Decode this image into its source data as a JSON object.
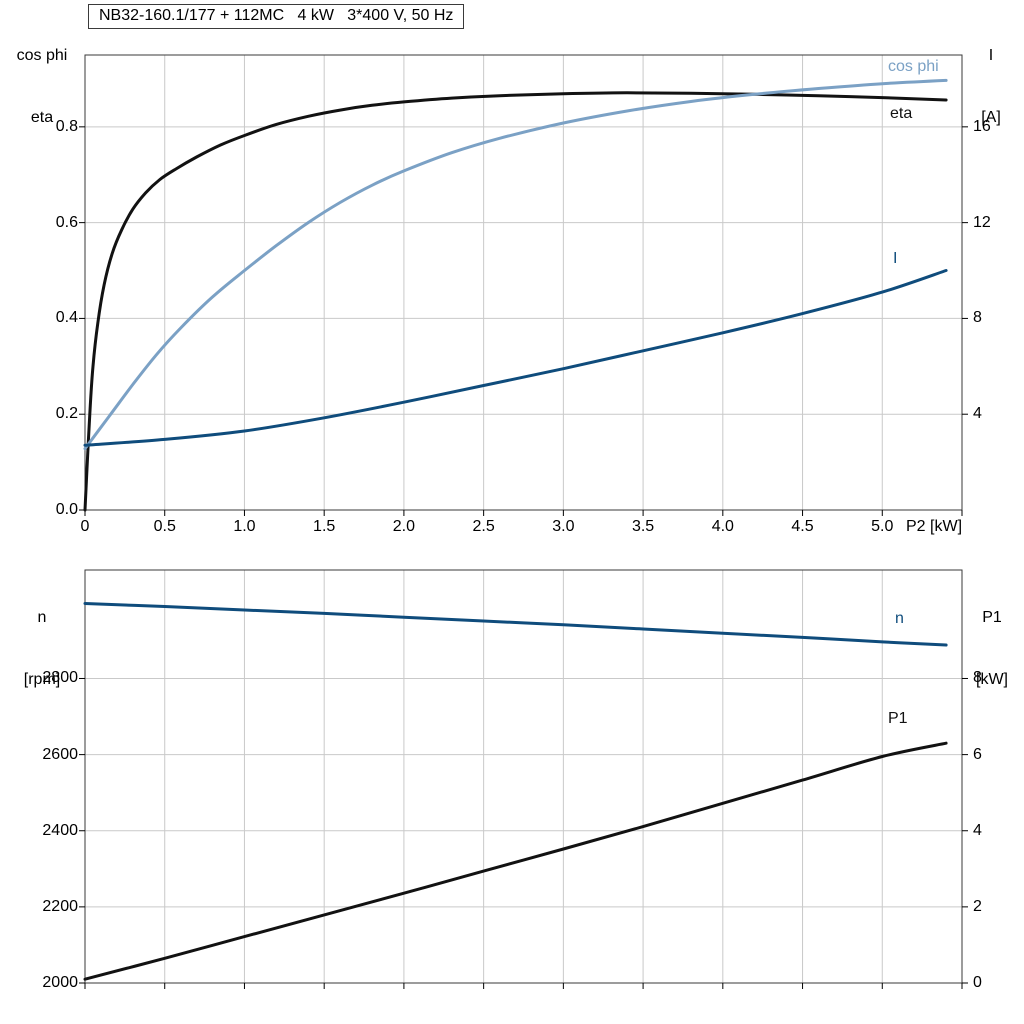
{
  "header": {
    "title": "NB32-160.1/177 + 112MC   4 kW   3*400 V, 50 Hz"
  },
  "axes": {
    "top_left_line1": "cos phi",
    "top_left_line2": "eta",
    "top_right_line1": "I",
    "top_right_line2": "[A]",
    "x_label": "P2 [kW]",
    "bottom_left_line1": "n",
    "bottom_left_line2": "[rpm]",
    "bottom_right_line1": "P1",
    "bottom_right_line2": "[kW]"
  },
  "colors": {
    "grid": "#c9c9c9",
    "frame": "#3a3a3a",
    "text": "#000000",
    "black_curve": "#121212",
    "light_blue": "#7ba1c5",
    "dark_blue": "#0f4c7c"
  },
  "chart_data": [
    {
      "type": "line",
      "title": "NB32-160.1/177 + 112MC   4 kW   3*400 V, 50 Hz",
      "xlabel": "P2 [kW]",
      "xlim": [
        0,
        5.5
      ],
      "x_ticks": [
        0,
        0.5,
        1,
        1.5,
        2,
        2.5,
        3,
        3.5,
        4,
        4.5,
        5
      ],
      "x_tick_labels": [
        "0",
        "0.5",
        "1.0",
        "1.5",
        "2.0",
        "2.5",
        "3.0",
        "3.5",
        "4.0",
        "4.5",
        "5.0"
      ],
      "left_axis": {
        "label": "cos phi / eta",
        "lim": [
          0,
          0.95
        ],
        "ticks": [
          0,
          0.2,
          0.4,
          0.6,
          0.8
        ],
        "tick_labels": [
          "0.0",
          "0.2",
          "0.4",
          "0.6",
          "0.8"
        ]
      },
      "right_axis": {
        "label": "I [A]",
        "lim": [
          0,
          19
        ],
        "ticks": [
          4,
          8,
          12,
          16
        ],
        "tick_labels": [
          "4",
          "8",
          "12",
          "16"
        ]
      },
      "grid": true,
      "legend_position": "right-inline",
      "series": [
        {
          "name": "eta",
          "color": "#121212",
          "axis": "left",
          "x": [
            0,
            0.01,
            0.03,
            0.05,
            0.08,
            0.12,
            0.17,
            0.23,
            0.3,
            0.38,
            0.47,
            0.57,
            0.7,
            0.85,
            1.0,
            1.2,
            1.4,
            1.6,
            1.8,
            2.0,
            2.3,
            2.6,
            3.0,
            3.4,
            3.8,
            4.2,
            4.6,
            5.0,
            5.4
          ],
          "y": [
            0,
            0.07,
            0.2,
            0.3,
            0.39,
            0.47,
            0.535,
            0.585,
            0.628,
            0.662,
            0.69,
            0.712,
            0.737,
            0.762,
            0.782,
            0.805,
            0.822,
            0.835,
            0.845,
            0.852,
            0.86,
            0.865,
            0.869,
            0.871,
            0.87,
            0.868,
            0.865,
            0.861,
            0.856
          ]
        },
        {
          "name": "cos phi",
          "color": "#7ba1c5",
          "axis": "left",
          "x": [
            0,
            0.15,
            0.3,
            0.45,
            0.6,
            0.8,
            1.0,
            1.2,
            1.4,
            1.6,
            1.8,
            2.0,
            2.3,
            2.6,
            3.0,
            3.4,
            3.8,
            4.2,
            4.6,
            5.0,
            5.4
          ],
          "y": [
            0.128,
            0.195,
            0.262,
            0.325,
            0.38,
            0.445,
            0.5,
            0.552,
            0.6,
            0.642,
            0.678,
            0.708,
            0.746,
            0.776,
            0.808,
            0.833,
            0.853,
            0.868,
            0.88,
            0.89,
            0.897
          ]
        },
        {
          "name": "I",
          "color": "#0f4c7c",
          "axis": "right",
          "x": [
            0,
            0.5,
            1.0,
            1.5,
            2.0,
            2.5,
            3.0,
            3.5,
            4.0,
            4.5,
            5.0,
            5.4
          ],
          "y": [
            2.7,
            2.95,
            3.3,
            3.85,
            4.5,
            5.2,
            5.9,
            6.65,
            7.4,
            8.2,
            9.1,
            10.0
          ]
        }
      ]
    },
    {
      "type": "line",
      "title": "",
      "xlabel": "",
      "xlim": [
        0,
        5.5
      ],
      "x_ticks": [
        0,
        0.5,
        1,
        1.5,
        2,
        2.5,
        3,
        3.5,
        4,
        4.5,
        5
      ],
      "x_tick_labels": [],
      "left_axis": {
        "label": "n [rpm]",
        "lim": [
          2000,
          3085
        ],
        "ticks": [
          2000,
          2200,
          2400,
          2600,
          2800
        ],
        "tick_labels": [
          "2000",
          "2200",
          "2400",
          "2600",
          "2800"
        ]
      },
      "right_axis": {
        "label": "P1 [kW]",
        "lim": [
          0,
          10.85
        ],
        "ticks": [
          0,
          2,
          4,
          6,
          8
        ],
        "tick_labels": [
          "0",
          "2",
          "4",
          "6",
          "8"
        ]
      },
      "grid": true,
      "legend_position": "right-inline",
      "series": [
        {
          "name": "n",
          "color": "#0f4c7c",
          "axis": "left",
          "x": [
            0,
            0.5,
            1,
            1.5,
            2,
            2.5,
            3,
            3.5,
            4,
            4.5,
            5,
            5.4
          ],
          "y": [
            2997,
            2989,
            2980,
            2971,
            2961,
            2951,
            2941,
            2930,
            2919,
            2908,
            2896,
            2888
          ]
        },
        {
          "name": "P1",
          "color": "#121212",
          "axis": "right",
          "x": [
            0,
            0.5,
            1,
            1.5,
            2,
            2.5,
            3,
            3.5,
            4,
            4.5,
            5,
            5.4
          ],
          "y": [
            0.1,
            0.65,
            1.22,
            1.79,
            2.36,
            2.94,
            3.52,
            4.11,
            4.72,
            5.33,
            5.95,
            6.3
          ]
        }
      ]
    }
  ]
}
